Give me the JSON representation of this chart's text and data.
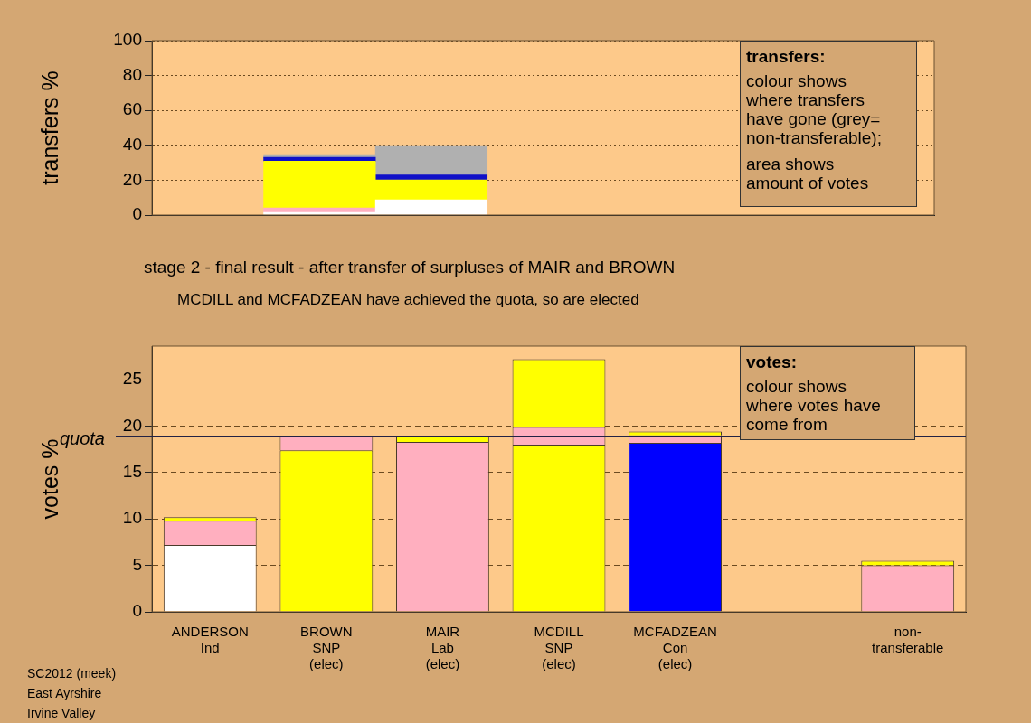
{
  "chart_data": [
    {
      "type": "bar",
      "stacked": true,
      "ylabel": "transfers %",
      "categories": [
        null,
        null,
        null,
        null,
        null,
        null,
        null
      ],
      "ylim": [
        0,
        100
      ],
      "yticks": [
        0,
        20,
        40,
        60,
        80,
        100
      ],
      "grid": "y",
      "tick_labels": "y",
      "series": [
        {
          "color": "#ffffff",
          "values": [
            null,
            1.5,
            8.8,
            null,
            null,
            null,
            null
          ]
        },
        {
          "color": "#ffafbf",
          "values": [
            null,
            2.6,
            null,
            null,
            null,
            null,
            null
          ]
        },
        {
          "color": "#ffff00",
          "values": [
            null,
            26.8,
            11.4,
            null,
            null,
            null,
            null
          ]
        },
        {
          "color": "#1010c8",
          "values": [
            null,
            2.2,
            2.8,
            null,
            null,
            null,
            null
          ]
        },
        {
          "color": "#b0b0b0",
          "values": [
            null,
            1.6,
            16.9,
            null,
            null,
            null,
            null
          ]
        }
      ],
      "annotations": [
        "transfers:",
        "colour shows where transfers have gone (grey= non-transferable);",
        "area shows amount of votes"
      ]
    },
    {
      "type": "bar",
      "stacked": true,
      "title": "stage 2 - final result - after transfer of surpluses of MAIR and BROWN",
      "subtitle": "MCDILL and MCFADZEAN have achieved the quota, so are elected",
      "ylabel": "votes %",
      "categories": [
        "ANDERSON\nInd",
        "BROWN\nSNP\n(elec)",
        "MAIR\nLab\n(elec)",
        "MCDILL\nSNP\n(elec)",
        "MCFADZEAN\nCon\n(elec)",
        null,
        "non-\ntransferable"
      ],
      "ylim": [
        0,
        28.6
      ],
      "yticks": [
        0,
        5,
        10,
        15,
        20,
        25
      ],
      "grid": "y",
      "series": [
        {
          "colors": [
            "#ffffff",
            "#ffff00",
            "#ffafbf",
            "#ffff00",
            "#0000ff",
            "#ffffff",
            "#ffafbf"
          ],
          "values": [
            7.2,
            17.4,
            18.3,
            18.0,
            18.2,
            null,
            5.0
          ]
        },
        {
          "colors": [
            "#ffafbf",
            "#ffafbf",
            "#ffff00",
            "#ffafbf",
            "#ffafbf",
            "#ffffff",
            "#ffff00"
          ],
          "values": [
            2.6,
            1.5,
            0.6,
            1.9,
            0.8,
            null,
            0.5
          ]
        },
        {
          "colors": [
            "#ffff00",
            "#ffff00",
            "#ffff00",
            "#ffff00",
            "#ffff00",
            "#ffff00",
            "#ffff00"
          ],
          "values": [
            0.4,
            null,
            null,
            7.3,
            0.4,
            null,
            null
          ]
        }
      ],
      "ref_lines": [
        {
          "axis": "y",
          "value": 18.9,
          "label": "quota"
        }
      ],
      "annotations": [
        "votes:",
        "colour shows where votes have come from",
        "SC2012 (meek)",
        "East Ayrshire",
        "Irvine Valley"
      ]
    }
  ]
}
